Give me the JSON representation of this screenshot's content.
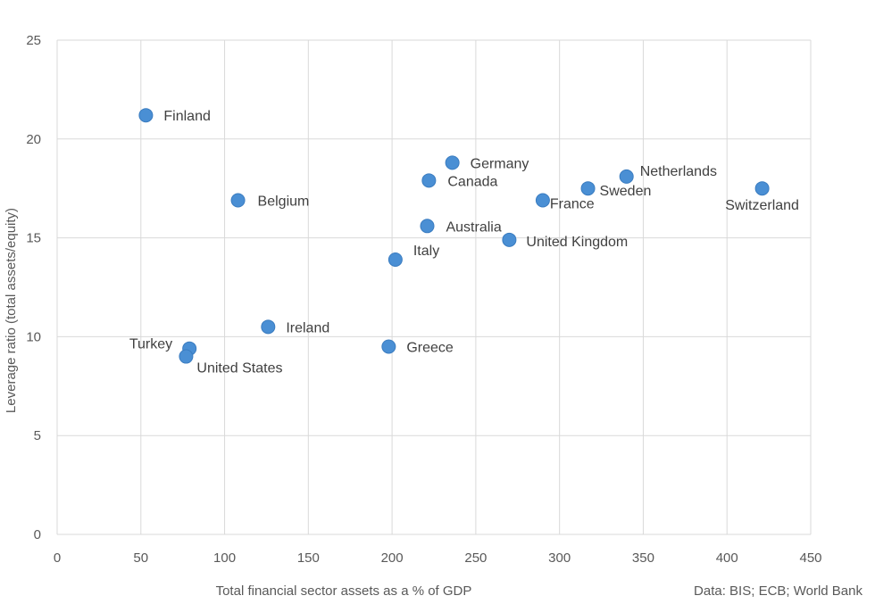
{
  "chart_data": {
    "type": "scatter",
    "title": "",
    "xlabel": "Total financial sector assets as a % of GDP",
    "ylabel": "Leverage  ratio (total assets/equity)",
    "source": "Data: BIS; ECB; World Bank",
    "xlim": [
      0,
      450
    ],
    "ylim": [
      0,
      25
    ],
    "x_ticks": [
      "0",
      "50",
      "100",
      "150",
      "200",
      "250",
      "300",
      "350",
      "400",
      "450"
    ],
    "y_ticks": [
      "0",
      "5",
      "10",
      "15",
      "20",
      "25"
    ],
    "grid": true,
    "marker_color": "#4a8fd4",
    "points": [
      {
        "label": "Finland",
        "x": 53,
        "y": 21.2
      },
      {
        "label": "Belgium",
        "x": 108,
        "y": 16.9
      },
      {
        "label": "Ireland",
        "x": 126,
        "y": 10.5
      },
      {
        "label": "Turkey",
        "x": 79,
        "y": 9.4
      },
      {
        "label": "United States",
        "x": 77,
        "y": 9.0
      },
      {
        "label": "Greece",
        "x": 198,
        "y": 9.5
      },
      {
        "label": "Italy",
        "x": 202,
        "y": 13.9
      },
      {
        "label": "Australia",
        "x": 221,
        "y": 15.6
      },
      {
        "label": "Canada",
        "x": 222,
        "y": 17.9
      },
      {
        "label": "Germany",
        "x": 236,
        "y": 18.8
      },
      {
        "label": "United Kingdom",
        "x": 270,
        "y": 14.9
      },
      {
        "label": "France",
        "x": 290,
        "y": 16.9
      },
      {
        "label": "Sweden",
        "x": 317,
        "y": 17.5
      },
      {
        "label": "Netherlands",
        "x": 340,
        "y": 18.1
      },
      {
        "label": "Switzerland",
        "x": 421,
        "y": 17.5
      }
    ]
  }
}
